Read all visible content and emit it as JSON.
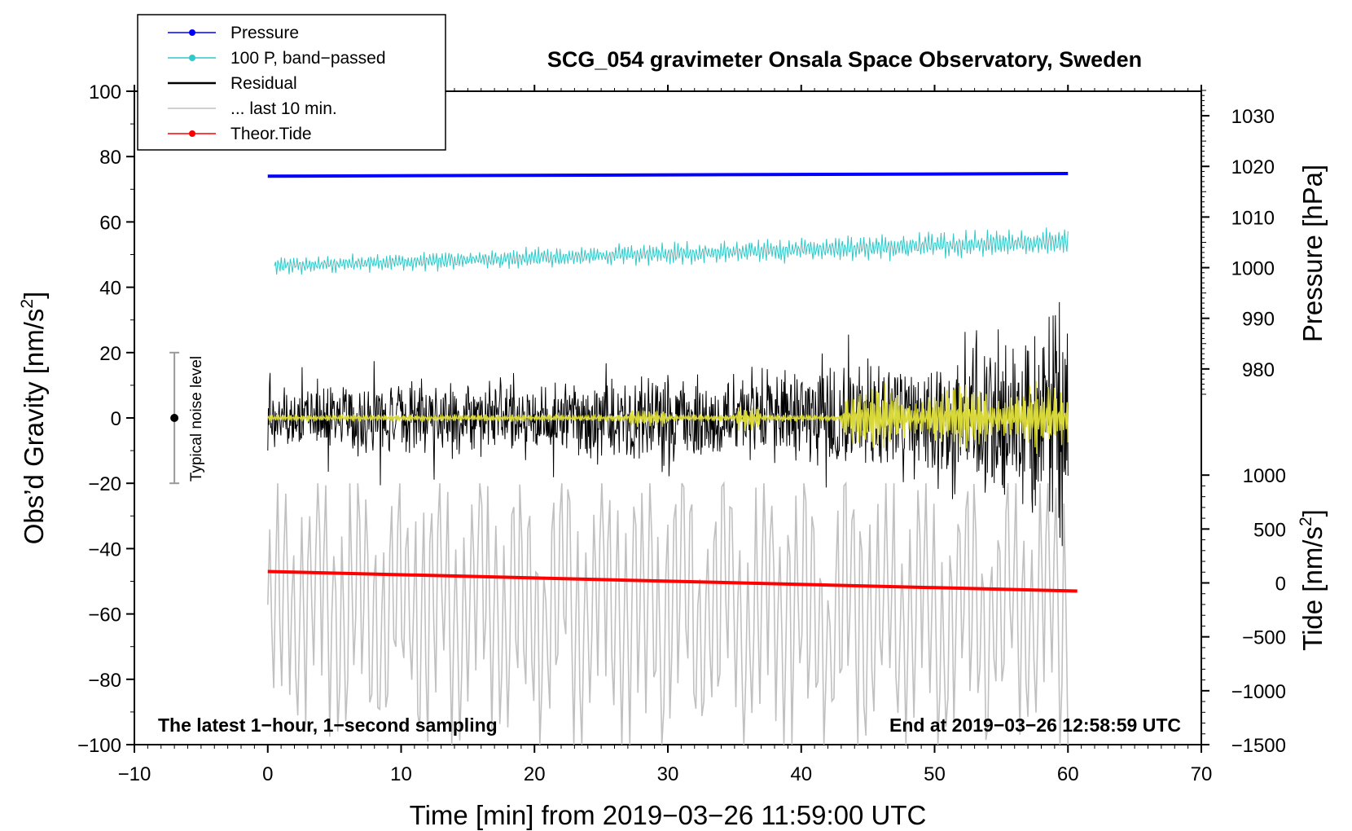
{
  "chart_data": {
    "type": "line",
    "title": "SCG_054 gravimeter Onsala Space Observatory, Sweden",
    "xlabel": "Time [min] from 2019−03−26 11:59:00 UTC",
    "ylabel": "Obs’d Gravity [nm/s",
    "ylabel_sup": "2",
    "ylabel_end": "]",
    "y2label": "Pressure [hPa]",
    "y3label": "Tide [nm/s",
    "y3label_sup": "2",
    "y3label_end": "]",
    "xlim": [
      -10,
      70
    ],
    "ylim": [
      -100,
      100
    ],
    "xticks": [
      -10,
      0,
      10,
      20,
      30,
      40,
      50,
      60,
      70
    ],
    "xtick_labels": [
      "−10",
      "0",
      "10",
      "20",
      "30",
      "40",
      "50",
      "60",
      "70"
    ],
    "yticks": [
      100,
      80,
      60,
      40,
      20,
      0,
      -20,
      -40,
      -60,
      -80,
      -100
    ],
    "ytick_labels": [
      "100",
      "80",
      "60",
      "40",
      "20",
      "0",
      "−20",
      "−40",
      "−60",
      "−80",
      "−100"
    ],
    "pressure_axis": {
      "ticks": [
        1030,
        1020,
        1010,
        1000,
        990,
        980
      ],
      "tick_labels": [
        "1030",
        "1020",
        "1010",
        "1000",
        "990",
        "980"
      ],
      "left_y_at_1000": 46,
      "left_y_per_hpa": 1.55
    },
    "tide_axis": {
      "ticks": [
        1000,
        500,
        0,
        -500,
        -1000,
        -1500
      ],
      "tick_labels": [
        "1000",
        "500",
        "0",
        "−500",
        "−1000",
        "−1500"
      ],
      "left_y_at_0": -50.5,
      "left_y_per_unit": 0.033
    },
    "series": [
      {
        "name": "Pressure",
        "color": "#0000ff",
        "style": "thick",
        "x": [
          0,
          60
        ],
        "y": [
          74,
          74.8
        ]
      },
      {
        "name": "100 P, band−passed",
        "color": "#30c8c8",
        "style": "oscillating",
        "x_range": [
          0.5,
          60
        ],
        "center": [
          46.5,
          54
        ],
        "amplitude": [
          3,
          5
        ]
      },
      {
        "name": "Residual",
        "color": "#000000",
        "style": "noisy",
        "x_range": [
          0,
          60
        ],
        "center": 0,
        "amplitude_profile": [
          [
            0,
            12
          ],
          [
            25,
            14
          ],
          [
            43,
            18
          ],
          [
            50,
            25
          ],
          [
            60,
            40
          ]
        ]
      },
      {
        "name": "... last 10 min.",
        "color": "#c0c0c0",
        "style": "oscillating",
        "x_range": [
          0,
          60
        ],
        "center": -58,
        "amplitude": [
          25,
          40
        ]
      },
      {
        "name": "Theor.Tide",
        "color": "#ff0000",
        "style": "thick",
        "x": [
          0,
          60.7
        ],
        "y": [
          -47,
          -53
        ]
      },
      {
        "name": "",
        "color": "#d8d83a",
        "style": "filtered",
        "x_range": [
          0,
          60
        ]
      }
    ],
    "legend": [
      {
        "label": "Pressure",
        "color": "#0000ff",
        "marker": true
      },
      {
        "label": "100 P, band−passed",
        "color": "#30c8c8",
        "marker": true
      },
      {
        "label": "Residual",
        "color": "#000000",
        "marker": false
      },
      {
        "label": "... last 10 min.",
        "color": "#c0c0c0",
        "marker": false
      },
      {
        "label": "Theor.Tide",
        "color": "#ff0000",
        "marker": true
      }
    ],
    "legend_position": "top-left",
    "noise_indicator": {
      "label": "Typical noise level",
      "x": -7,
      "center": 0,
      "half_range": 20
    },
    "annotation_left": "The latest 1−hour, 1−second sampling",
    "annotation_right": "End at 2019−03−26 12:58:59 UTC"
  }
}
